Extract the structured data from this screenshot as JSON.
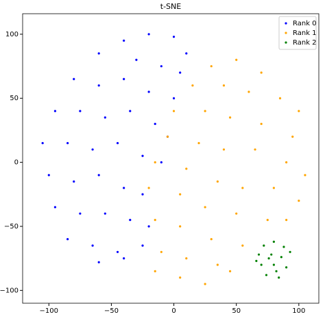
{
  "chart_data": {
    "type": "scatter",
    "title": "t-SNE",
    "xlim": [
      -121,
      116
    ],
    "ylim": [
      -110,
      116
    ],
    "xticks": [
      {
        "value": -100,
        "label": "−100"
      },
      {
        "value": -50,
        "label": "−50"
      },
      0,
      50,
      100
    ],
    "yticks": [
      {
        "value": -100,
        "label": "−100"
      },
      {
        "value": -50,
        "label": "−50"
      },
      0,
      50,
      100
    ],
    "legend": "upper right",
    "series": [
      {
        "name": "Rank 0",
        "color": "#0000ff",
        "x": [
          -40,
          -20,
          0,
          10,
          -60,
          -30,
          -10,
          5,
          -80,
          -60,
          -40,
          -20,
          0,
          -95,
          -75,
          -55,
          -35,
          -15,
          -5,
          -105,
          -85,
          -65,
          -45,
          -25,
          -10,
          -100,
          -80,
          -60,
          -40,
          -25,
          -95,
          -75,
          -55,
          -35,
          -20,
          -85,
          -65,
          -45,
          -25,
          -60,
          -40
        ],
        "y": [
          95,
          100,
          98,
          85,
          85,
          80,
          75,
          70,
          65,
          60,
          65,
          55,
          50,
          40,
          40,
          35,
          40,
          30,
          20,
          15,
          15,
          10,
          15,
          5,
          0,
          -10,
          -15,
          -10,
          -20,
          -25,
          -35,
          -40,
          -40,
          -45,
          -50,
          -60,
          -65,
          -70,
          -65,
          -78,
          -75
        ]
      },
      {
        "name": "Rank 1",
        "color": "#ffa500",
        "x": [
          30,
          50,
          70,
          15,
          40,
          60,
          85,
          100,
          0,
          25,
          45,
          70,
          95,
          -5,
          20,
          40,
          65,
          90,
          105,
          -15,
          10,
          35,
          55,
          80,
          100,
          -20,
          5,
          25,
          50,
          75,
          -15,
          5,
          30,
          55,
          -10,
          10,
          35,
          -15,
          5,
          25,
          45,
          90
        ],
        "y": [
          75,
          80,
          70,
          60,
          60,
          55,
          50,
          40,
          40,
          40,
          35,
          30,
          20,
          20,
          15,
          10,
          10,
          0,
          -10,
          0,
          -5,
          -15,
          -20,
          -20,
          -30,
          -20,
          -25,
          -35,
          -40,
          -45,
          -45,
          -50,
          -60,
          -65,
          -70,
          -75,
          -80,
          -85,
          -90,
          -95,
          -85,
          -45
        ]
      },
      {
        "name": "Rank 2",
        "color": "#008000",
        "x": [
          72,
          80,
          88,
          68,
          78,
          86,
          93,
          70,
          80,
          90,
          74,
          84,
          76,
          82,
          66
        ],
        "y": [
          -65,
          -62,
          -66,
          -72,
          -72,
          -74,
          -70,
          -80,
          -80,
          -82,
          -88,
          -90,
          -75,
          -85,
          -77
        ]
      }
    ]
  }
}
